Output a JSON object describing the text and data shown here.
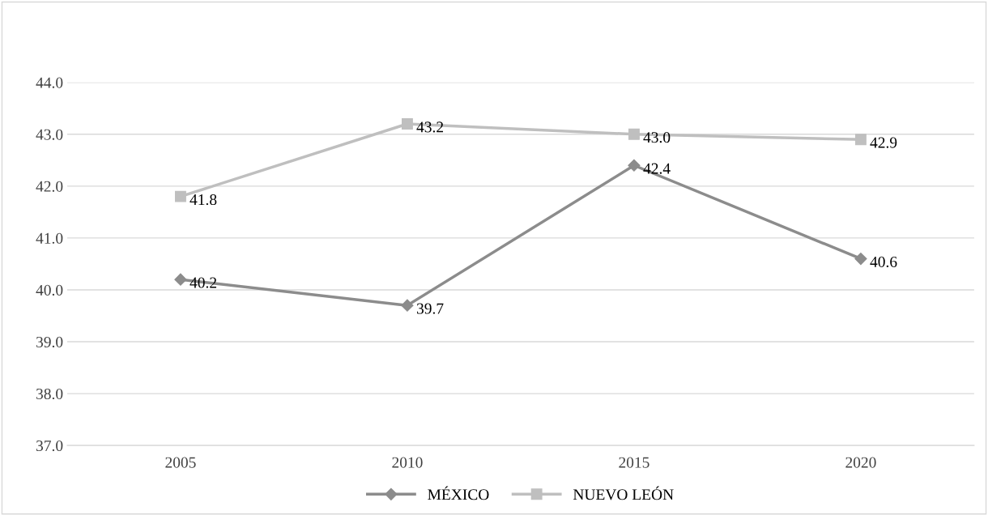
{
  "chart_data": {
    "type": "line",
    "categories": [
      "2005",
      "2010",
      "2015",
      "2020"
    ],
    "series": [
      {
        "name": "MÉXICO",
        "color": "#8c8c8c",
        "marker": "diamond",
        "values": [
          40.2,
          39.7,
          42.4,
          40.6
        ],
        "value_labels": [
          "40.2",
          "39.7",
          "42.4",
          "40.6"
        ]
      },
      {
        "name": "NUEVO LEÓN",
        "color": "#bfbfbf",
        "marker": "square",
        "values": [
          41.8,
          43.2,
          43.0,
          42.9
        ],
        "value_labels": [
          "41.8",
          "43.2",
          "43.0",
          "42.9"
        ]
      }
    ],
    "ylim": [
      37,
      44
    ],
    "yticks": [
      {
        "value": 37,
        "label": "37.0"
      },
      {
        "value": 38,
        "label": "38.0"
      },
      {
        "value": 39,
        "label": "39.0"
      },
      {
        "value": 40,
        "label": "40.0"
      },
      {
        "value": 41,
        "label": "41.0"
      },
      {
        "value": 42,
        "label": "42.0"
      },
      {
        "value": 43,
        "label": "43.0"
      },
      {
        "value": 44,
        "label": "44.0"
      }
    ],
    "grid": "y",
    "legend": "bottom",
    "line_style": "solid"
  }
}
